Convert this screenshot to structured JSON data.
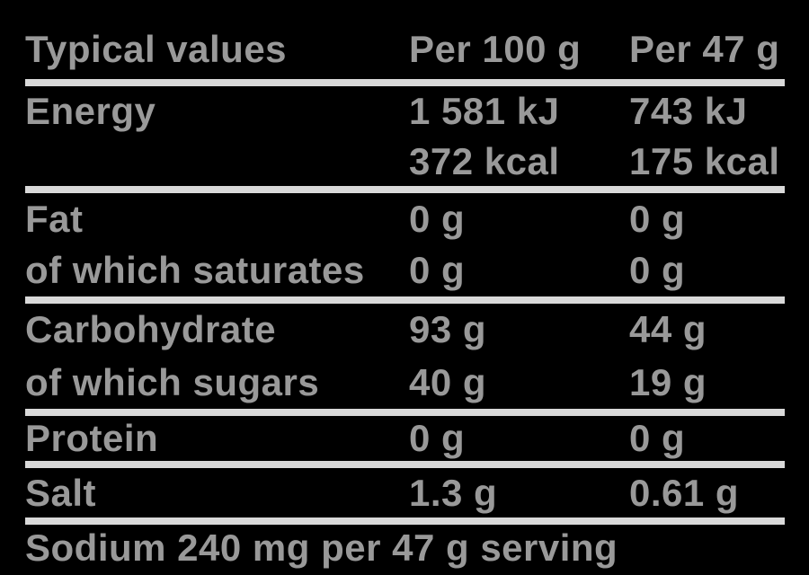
{
  "colors": {
    "background": "#000000",
    "text": "#999999",
    "divider": "#d9d9d9"
  },
  "table": {
    "columns": {
      "label": "Typical values",
      "per100": "Per 100 g",
      "per47": "Per 47 g"
    },
    "rows": [
      {
        "label": "Energy",
        "v100": "1 581 kJ",
        "v47": "743 kJ"
      },
      {
        "label": "",
        "v100": "372 kcal",
        "v47": "175 kcal"
      },
      {
        "label": "Fat",
        "v100": "0 g",
        "v47": "0 g"
      },
      {
        "label": "of which saturates",
        "v100": "0 g",
        "v47": "0 g"
      },
      {
        "label": "Carbohydrate",
        "v100": "93 g",
        "v47": "44 g"
      },
      {
        "label": "of which sugars",
        "v100": "40 g",
        "v47": "19 g"
      },
      {
        "label": "Protein",
        "v100": "0 g",
        "v47": "0 g"
      },
      {
        "label": "Salt",
        "v100": "1.3 g",
        "v47": "0.61 g"
      }
    ],
    "footer": "Sodium 240 mg per 47 g serving"
  }
}
